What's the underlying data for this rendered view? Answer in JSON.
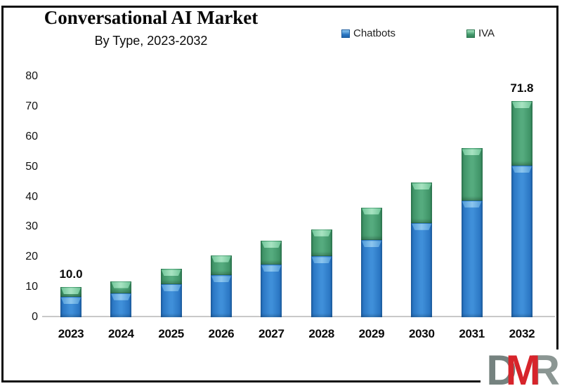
{
  "header": {
    "title": "Conversational AI Market",
    "subtitle": "By Type, 2023-2032"
  },
  "legend": {
    "items": [
      {
        "label": "Chatbots",
        "color": "#2B77C4"
      },
      {
        "label": "IVA",
        "color": "#44996C"
      }
    ],
    "position": "top-right"
  },
  "chart_data": {
    "type": "bar",
    "stacked": true,
    "title": "Conversational AI Market",
    "subtitle": "By Type, 2023-2032",
    "categories": [
      "2023",
      "2024",
      "2025",
      "2026",
      "2027",
      "2028",
      "2029",
      "2030",
      "2031",
      "2032"
    ],
    "series": [
      {
        "name": "Chatbots",
        "color": "#2B77C4",
        "values": [
          6.7,
          8.0,
          11.0,
          13.9,
          17.4,
          20.2,
          25.6,
          31.3,
          38.8,
          50.3
        ]
      },
      {
        "name": "IVA",
        "color": "#44996C",
        "values": [
          3.3,
          4.0,
          5.0,
          6.7,
          8.0,
          9.0,
          10.9,
          13.4,
          17.3,
          21.5
        ]
      }
    ],
    "totals": [
      10.0,
      12.0,
      16.0,
      20.6,
      25.4,
      29.2,
      36.5,
      44.7,
      56.1,
      71.8
    ],
    "bar_labels": [
      "10.0",
      "",
      "",
      "",
      "",
      "",
      "",
      "",
      "",
      "71.8"
    ],
    "xlabel": "",
    "ylabel": "",
    "ylim": [
      0,
      80
    ],
    "yticks": [
      0,
      10,
      20,
      30,
      40,
      50,
      60,
      70,
      80
    ],
    "grid": false,
    "legend_position": "top-right"
  },
  "logo": {
    "d": "D",
    "m": "M",
    "r": "R",
    "colors": {
      "d": "#75827F",
      "m": "#D7242B",
      "r": "#8B9693"
    }
  }
}
